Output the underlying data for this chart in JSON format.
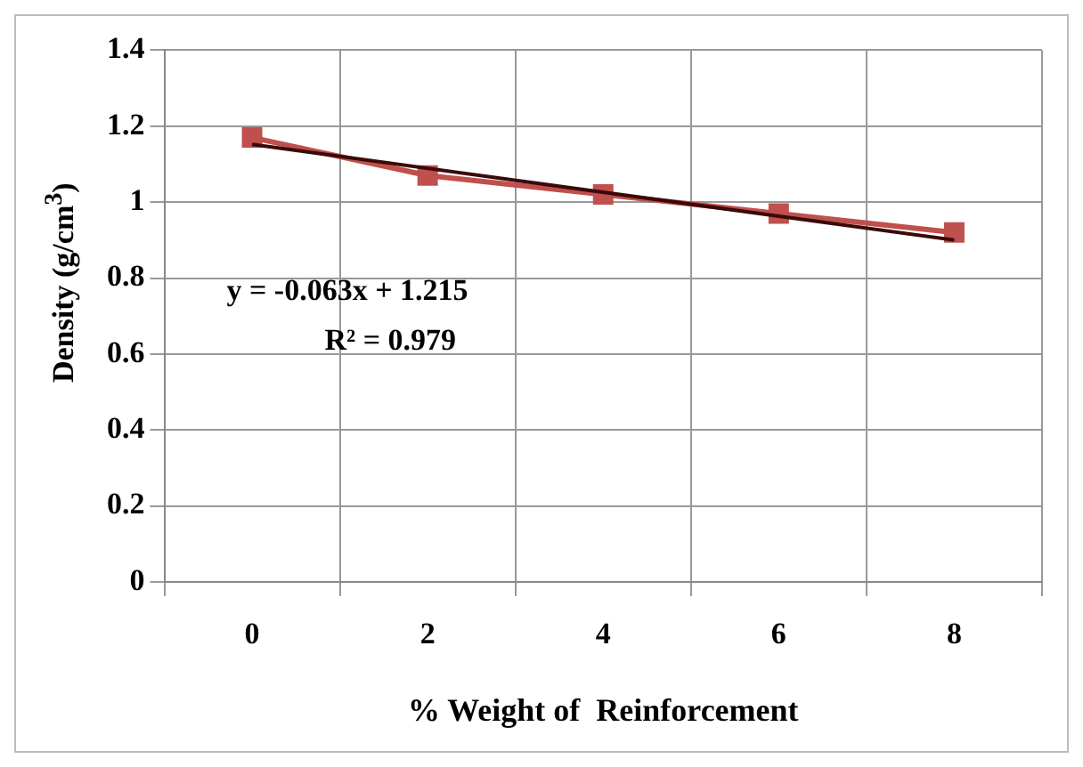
{
  "chart_data": {
    "type": "line",
    "xlabel": "% Weight of  Reinforcement",
    "ylabel": "Density (g/cm$^{3}$)",
    "categories": [
      "0",
      "2",
      "4",
      "6",
      "8"
    ],
    "series": [
      {
        "color": "#c0504d",
        "values": [
          1.17,
          1.07,
          1.02,
          0.97,
          0.92
        ],
        "marker": "square"
      },
      {
        "type": "line",
        "color": "#3a0a0a",
        "x": [
          "0",
          "8"
        ],
        "values": [
          1.152,
          0.9
        ],
        "marker": "none"
      }
    ],
    "ylim": [
      0,
      1.4
    ],
    "yticks": [
      0,
      0.2,
      0.4,
      0.6,
      0.8,
      1,
      1.2,
      1.4
    ],
    "grid": true,
    "legend": false,
    "annotations": [
      "y = -0.063x + 1.215",
      "R² = 0.979"
    ]
  }
}
